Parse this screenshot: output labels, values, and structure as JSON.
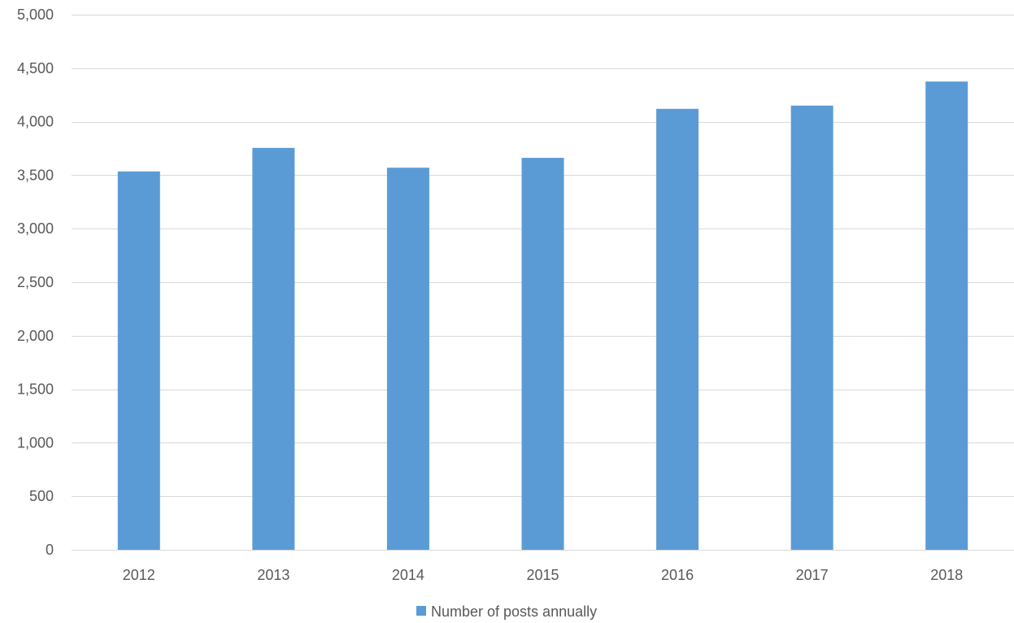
{
  "chart_data": {
    "type": "bar",
    "categories": [
      "2012",
      "2013",
      "2014",
      "2015",
      "2016",
      "2017",
      "2018"
    ],
    "series": [
      {
        "name": "Number of posts annually",
        "values": [
          3535,
          3755,
          3570,
          3662,
          4120,
          4150,
          4375
        ],
        "color": "#5b9bd5"
      }
    ],
    "ylim": [
      0,
      5000
    ],
    "yticks": [
      0,
      500,
      1000,
      1500,
      2000,
      2500,
      3000,
      3500,
      4000,
      4500,
      5000
    ],
    "ytick_labels": [
      "0",
      "500",
      "1,000",
      "1,500",
      "2,000",
      "2,500",
      "3,000",
      "3,500",
      "4,000",
      "4,500",
      "5,000"
    ],
    "title": "",
    "xlabel": "",
    "ylabel": "",
    "grid": true,
    "legend_position": "bottom"
  }
}
